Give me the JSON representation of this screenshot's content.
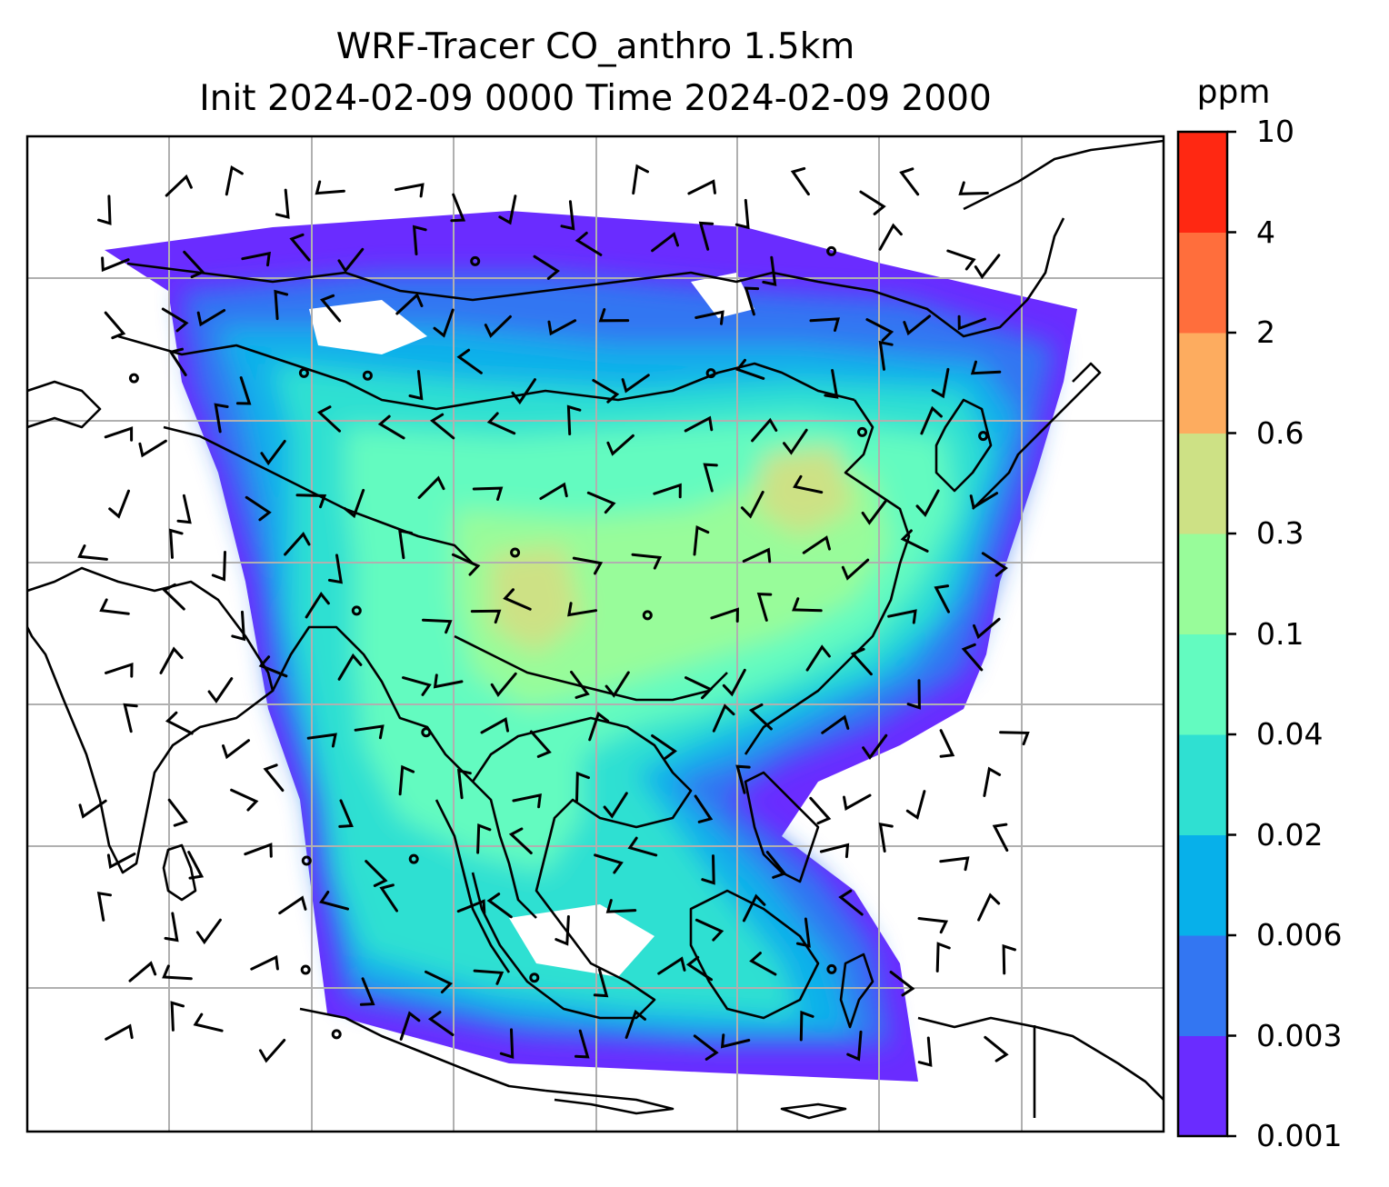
{
  "title": {
    "line1": "WRF-Tracer CO_anthro 1.5km",
    "line2": "Init 2024-02-09 0000 Time 2024-02-09 2000"
  },
  "colorbar": {
    "unit": "ppm",
    "ticks": [
      "0.001",
      "0.003",
      "0.006",
      "0.02",
      "0.04",
      "0.1",
      "0.3",
      "0.6",
      "2",
      "4",
      "10"
    ],
    "colors": [
      "#6a2cff",
      "#3376f2",
      "#07b0ea",
      "#2fe0d2",
      "#63fbc0",
      "#98fc9a",
      "#cde185",
      "#fdac5f",
      "#ff6e3c",
      "#ff2812"
    ]
  },
  "map": {
    "description_colors": {
      "land_outline": "#000000",
      "gridlines": "#b0b0b0",
      "wind_barbs": "#000000"
    }
  }
}
